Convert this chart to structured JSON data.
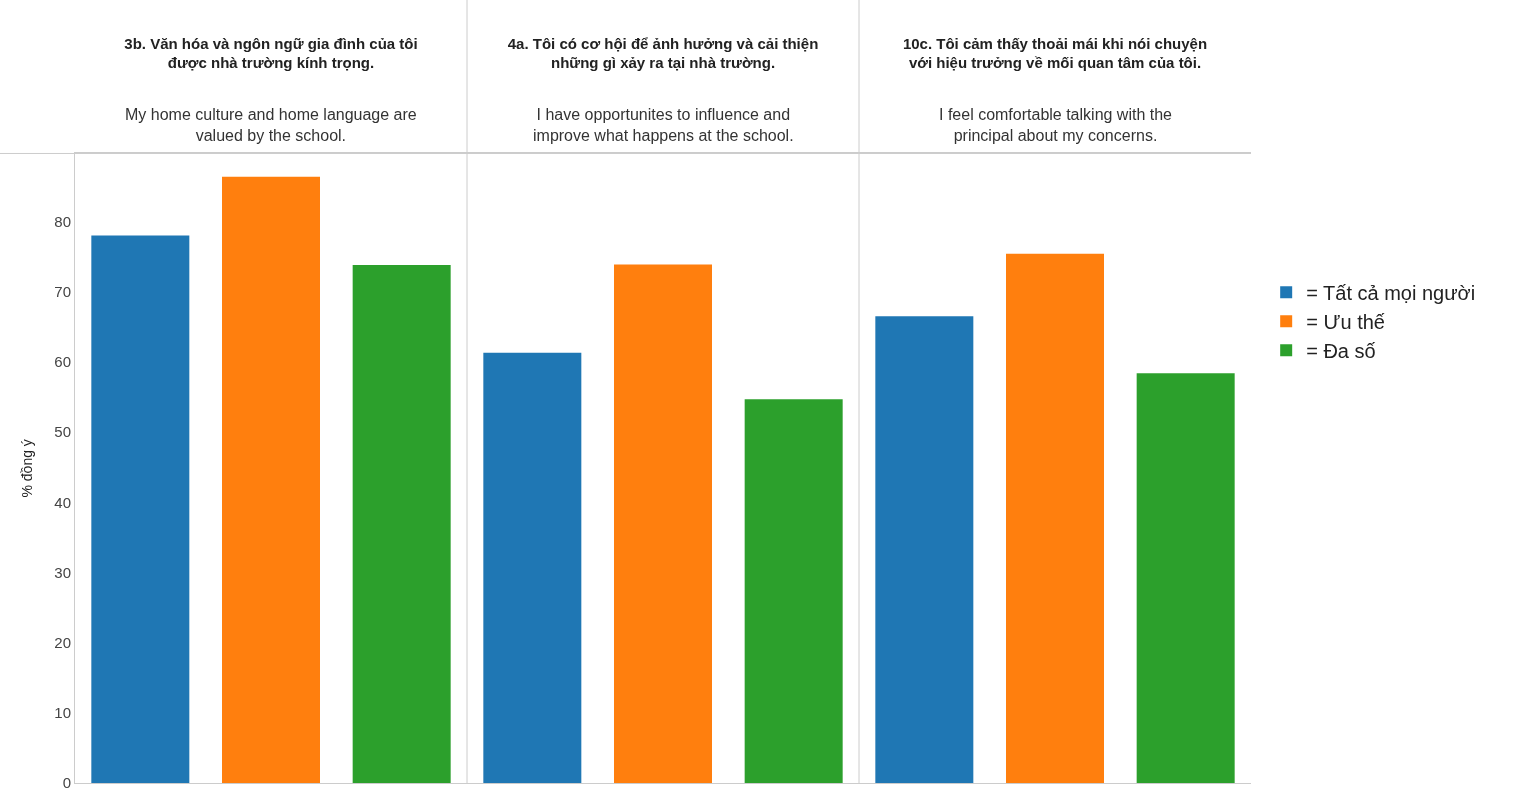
{
  "chart_data": {
    "type": "bar",
    "categories": [
      "3b. Văn hóa và ngôn ngữ gia đình của tôi được nhà trường kính trọng.",
      "4a. Tôi có cơ hội để ảnh hưởng và cải thiện những gì xảy ra tại nhà trường.",
      "10c. Tôi cảm thấy thoải mái khi nói chuyện với hiệu trưởng về mối quan tâm của tôi."
    ],
    "ylabel": "% đồng ý",
    "series": [
      {
        "name": "= Tất cả mọi người",
        "color": "#1f77b4",
        "values": [
          78.0,
          61.3,
          66.5
        ]
      },
      {
        "name": "= Ưu thế",
        "color": "#ff7f0e",
        "values": [
          86.4,
          73.9,
          75.4
        ]
      },
      {
        "name": "= Đa số",
        "color": "#2ca02c",
        "values": [
          73.8,
          54.7,
          58.4
        ]
      }
    ],
    "annotations": [
      "My home culture and home language are valued by the school.",
      "I have opportunites to influence and improve what happens at the school.",
      "I feel comfortable talking with the principal about my concerns."
    ],
    "ylim": [
      0,
      89.7
    ],
    "yticks": [
      0,
      10,
      20,
      30,
      40,
      50,
      60,
      70,
      80
    ],
    "legend": "right"
  }
}
